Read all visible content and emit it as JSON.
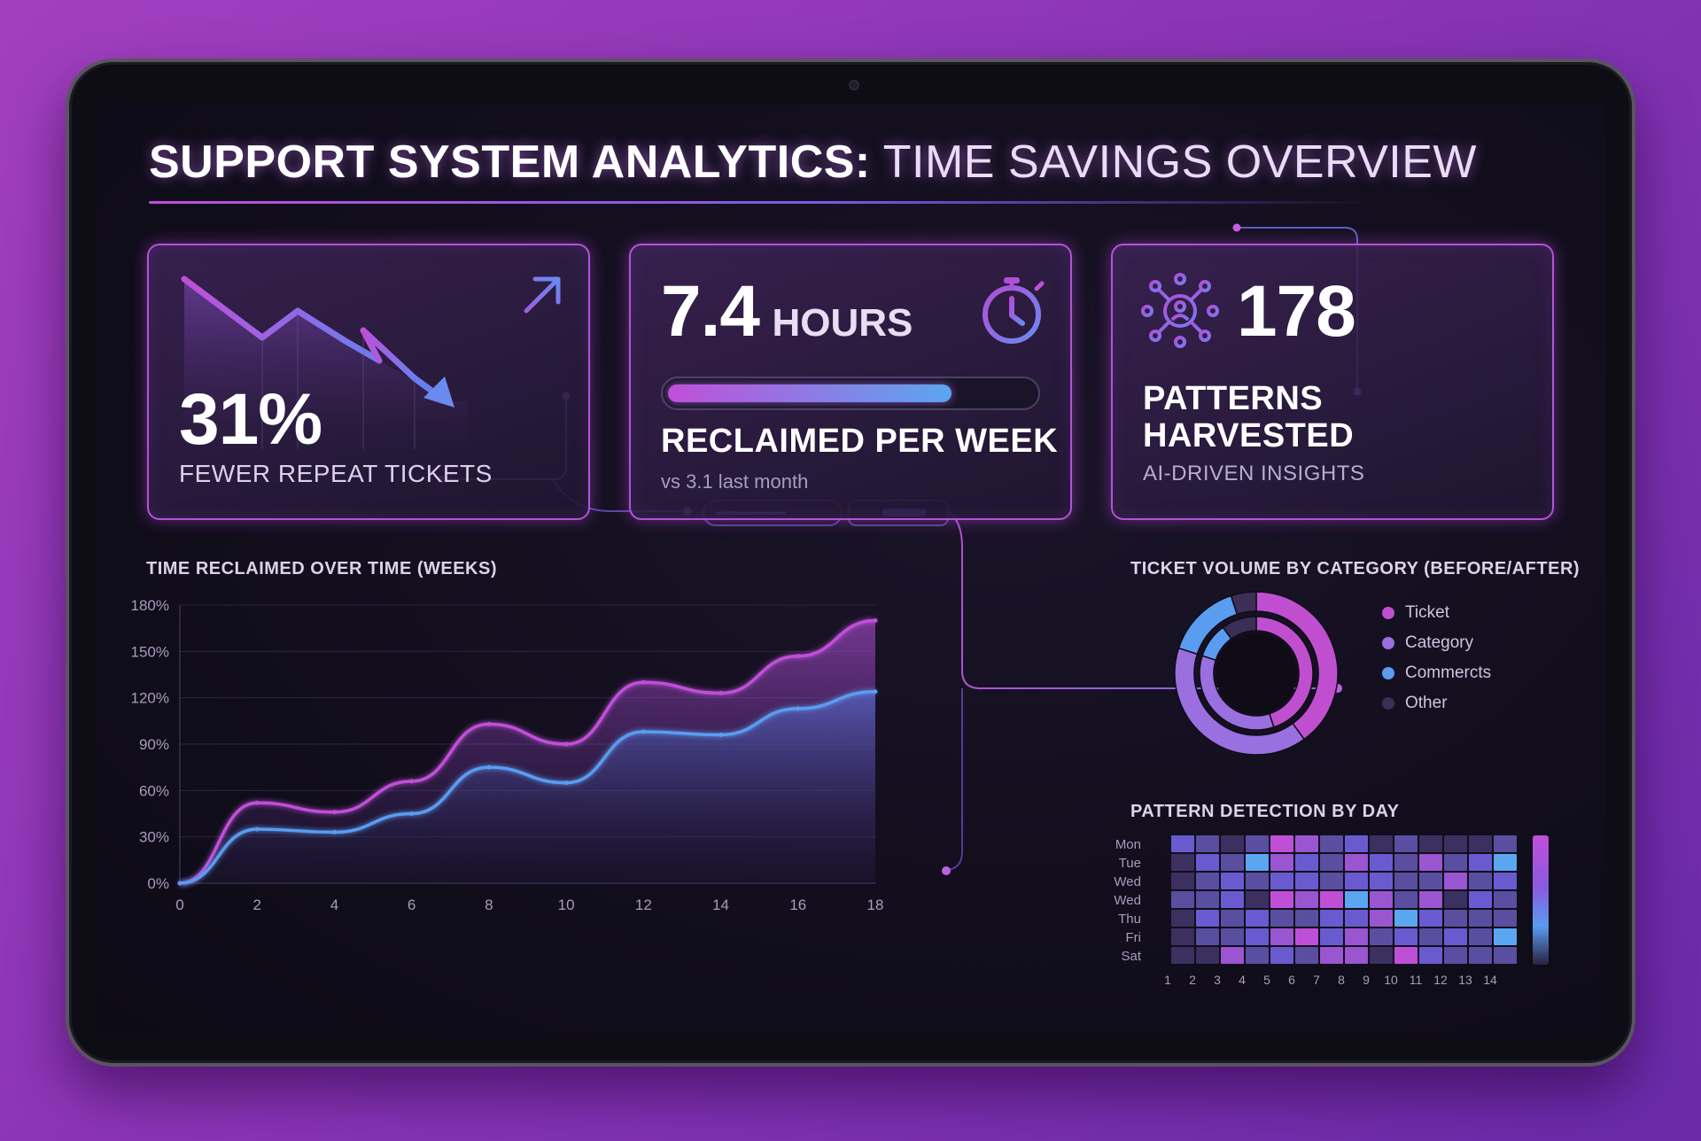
{
  "header": {
    "title_bold": "SUPPORT SYSTEM ANALYTICS:",
    "title_light": "TIME SAVINGS OVERVIEW"
  },
  "cards": [
    {
      "value": "31%",
      "label": "FEWER REPEAT TICKETS",
      "icon": "trend-arrow-icon"
    },
    {
      "value": "7.4",
      "unit": "HOURS",
      "label": "RECLAIMED PER WEEK",
      "sub": "vs 3.1 last month",
      "progress": 0.77,
      "icon": "stopwatch-icon"
    },
    {
      "value": "178",
      "label_line1": "PATTERNS",
      "label_line2": "HARVESTED",
      "sub": "AI-DRIVEN INSIGHTS",
      "icon": "network-icon"
    }
  ],
  "line_chart_title": "TIME RECLAIMED OVER TIME (WEEKS)",
  "donut_title": "TICKET VOLUME BY CATEGORY (BEFORE/AFTER)",
  "heatmap_title": "PATTERN DETECTION BY DAY",
  "legend": [
    {
      "label": "Ticket",
      "color": "#c04fd0"
    },
    {
      "label": "Category",
      "color": "#9a6fe0"
    },
    {
      "label": "Commercts",
      "color": "#5a9cf0"
    },
    {
      "label": "Other",
      "color": "#3b2f55"
    }
  ],
  "heatmap": {
    "rows": [
      "Mon",
      "Tue",
      "Wed",
      "Wed",
      "Thu",
      "Fri",
      "Sat"
    ],
    "cols": [
      "1",
      "2",
      "3",
      "4",
      "5",
      "6",
      "7",
      "8",
      "9",
      "10",
      "11",
      "12",
      "13",
      "14"
    ]
  },
  "chart_data": [
    {
      "type": "area",
      "title": "TIME RECLAIMED OVER TIME (WEEKS)",
      "x": [
        0,
        2,
        4,
        6,
        8,
        10,
        12,
        14,
        16,
        18
      ],
      "xlim": [
        0,
        18
      ],
      "ylim": [
        0,
        180
      ],
      "yticks": [
        "0%",
        "30%",
        "60%",
        "90%",
        "120%",
        "150%",
        "180%"
      ],
      "xticks": [
        "0",
        "2",
        "4",
        "6",
        "8",
        "10",
        "12",
        14,
        "16",
        "18"
      ],
      "grid": true,
      "series": [
        {
          "values": [
            0,
            52,
            46,
            66,
            103,
            90,
            130,
            123,
            147,
            170
          ],
          "color": "#c04fd8"
        },
        {
          "values": [
            0,
            35,
            33,
            45,
            75,
            65,
            98,
            96,
            113,
            124
          ],
          "color": "#5a9cf0"
        }
      ]
    },
    {
      "type": "pie",
      "title": "TICKET VOLUME BY CATEGORY (BEFORE/AFTER)",
      "categories": [
        "Ticket",
        "Category",
        "Commercts",
        "Other"
      ],
      "rings": [
        {
          "values": [
            40,
            40,
            15,
            5
          ]
        },
        {
          "values": [
            45,
            35,
            10,
            10
          ]
        }
      ]
    },
    {
      "type": "heatmap",
      "title": "PATTERN DETECTION BY DAY",
      "rows": [
        "Mon",
        "Tue",
        "Wed",
        "Wed",
        "Thu",
        "Fri",
        "Sat"
      ],
      "cols": [
        1,
        2,
        3,
        4,
        5,
        6,
        7,
        8,
        9,
        10,
        11,
        12,
        13,
        14
      ],
      "values": [
        [
          3,
          2,
          1,
          2,
          5,
          4,
          2,
          3,
          1,
          2,
          1,
          1,
          1,
          2
        ],
        [
          1,
          3,
          2,
          6,
          4,
          3,
          2,
          4,
          3,
          2,
          4,
          2,
          3,
          6
        ],
        [
          1,
          2,
          3,
          2,
          3,
          3,
          2,
          3,
          3,
          2,
          2,
          4,
          2,
          3
        ],
        [
          2,
          2,
          3,
          1,
          5,
          4,
          5,
          6,
          4,
          2,
          4,
          1,
          3,
          2
        ],
        [
          1,
          3,
          2,
          3,
          2,
          2,
          3,
          3,
          4,
          6,
          3,
          2,
          2,
          2
        ],
        [
          1,
          2,
          2,
          3,
          4,
          5,
          3,
          4,
          2,
          3,
          2,
          3,
          2,
          6
        ],
        [
          1,
          1,
          4,
          2,
          3,
          2,
          4,
          4,
          1,
          5,
          3,
          2,
          2,
          2
        ]
      ]
    }
  ]
}
